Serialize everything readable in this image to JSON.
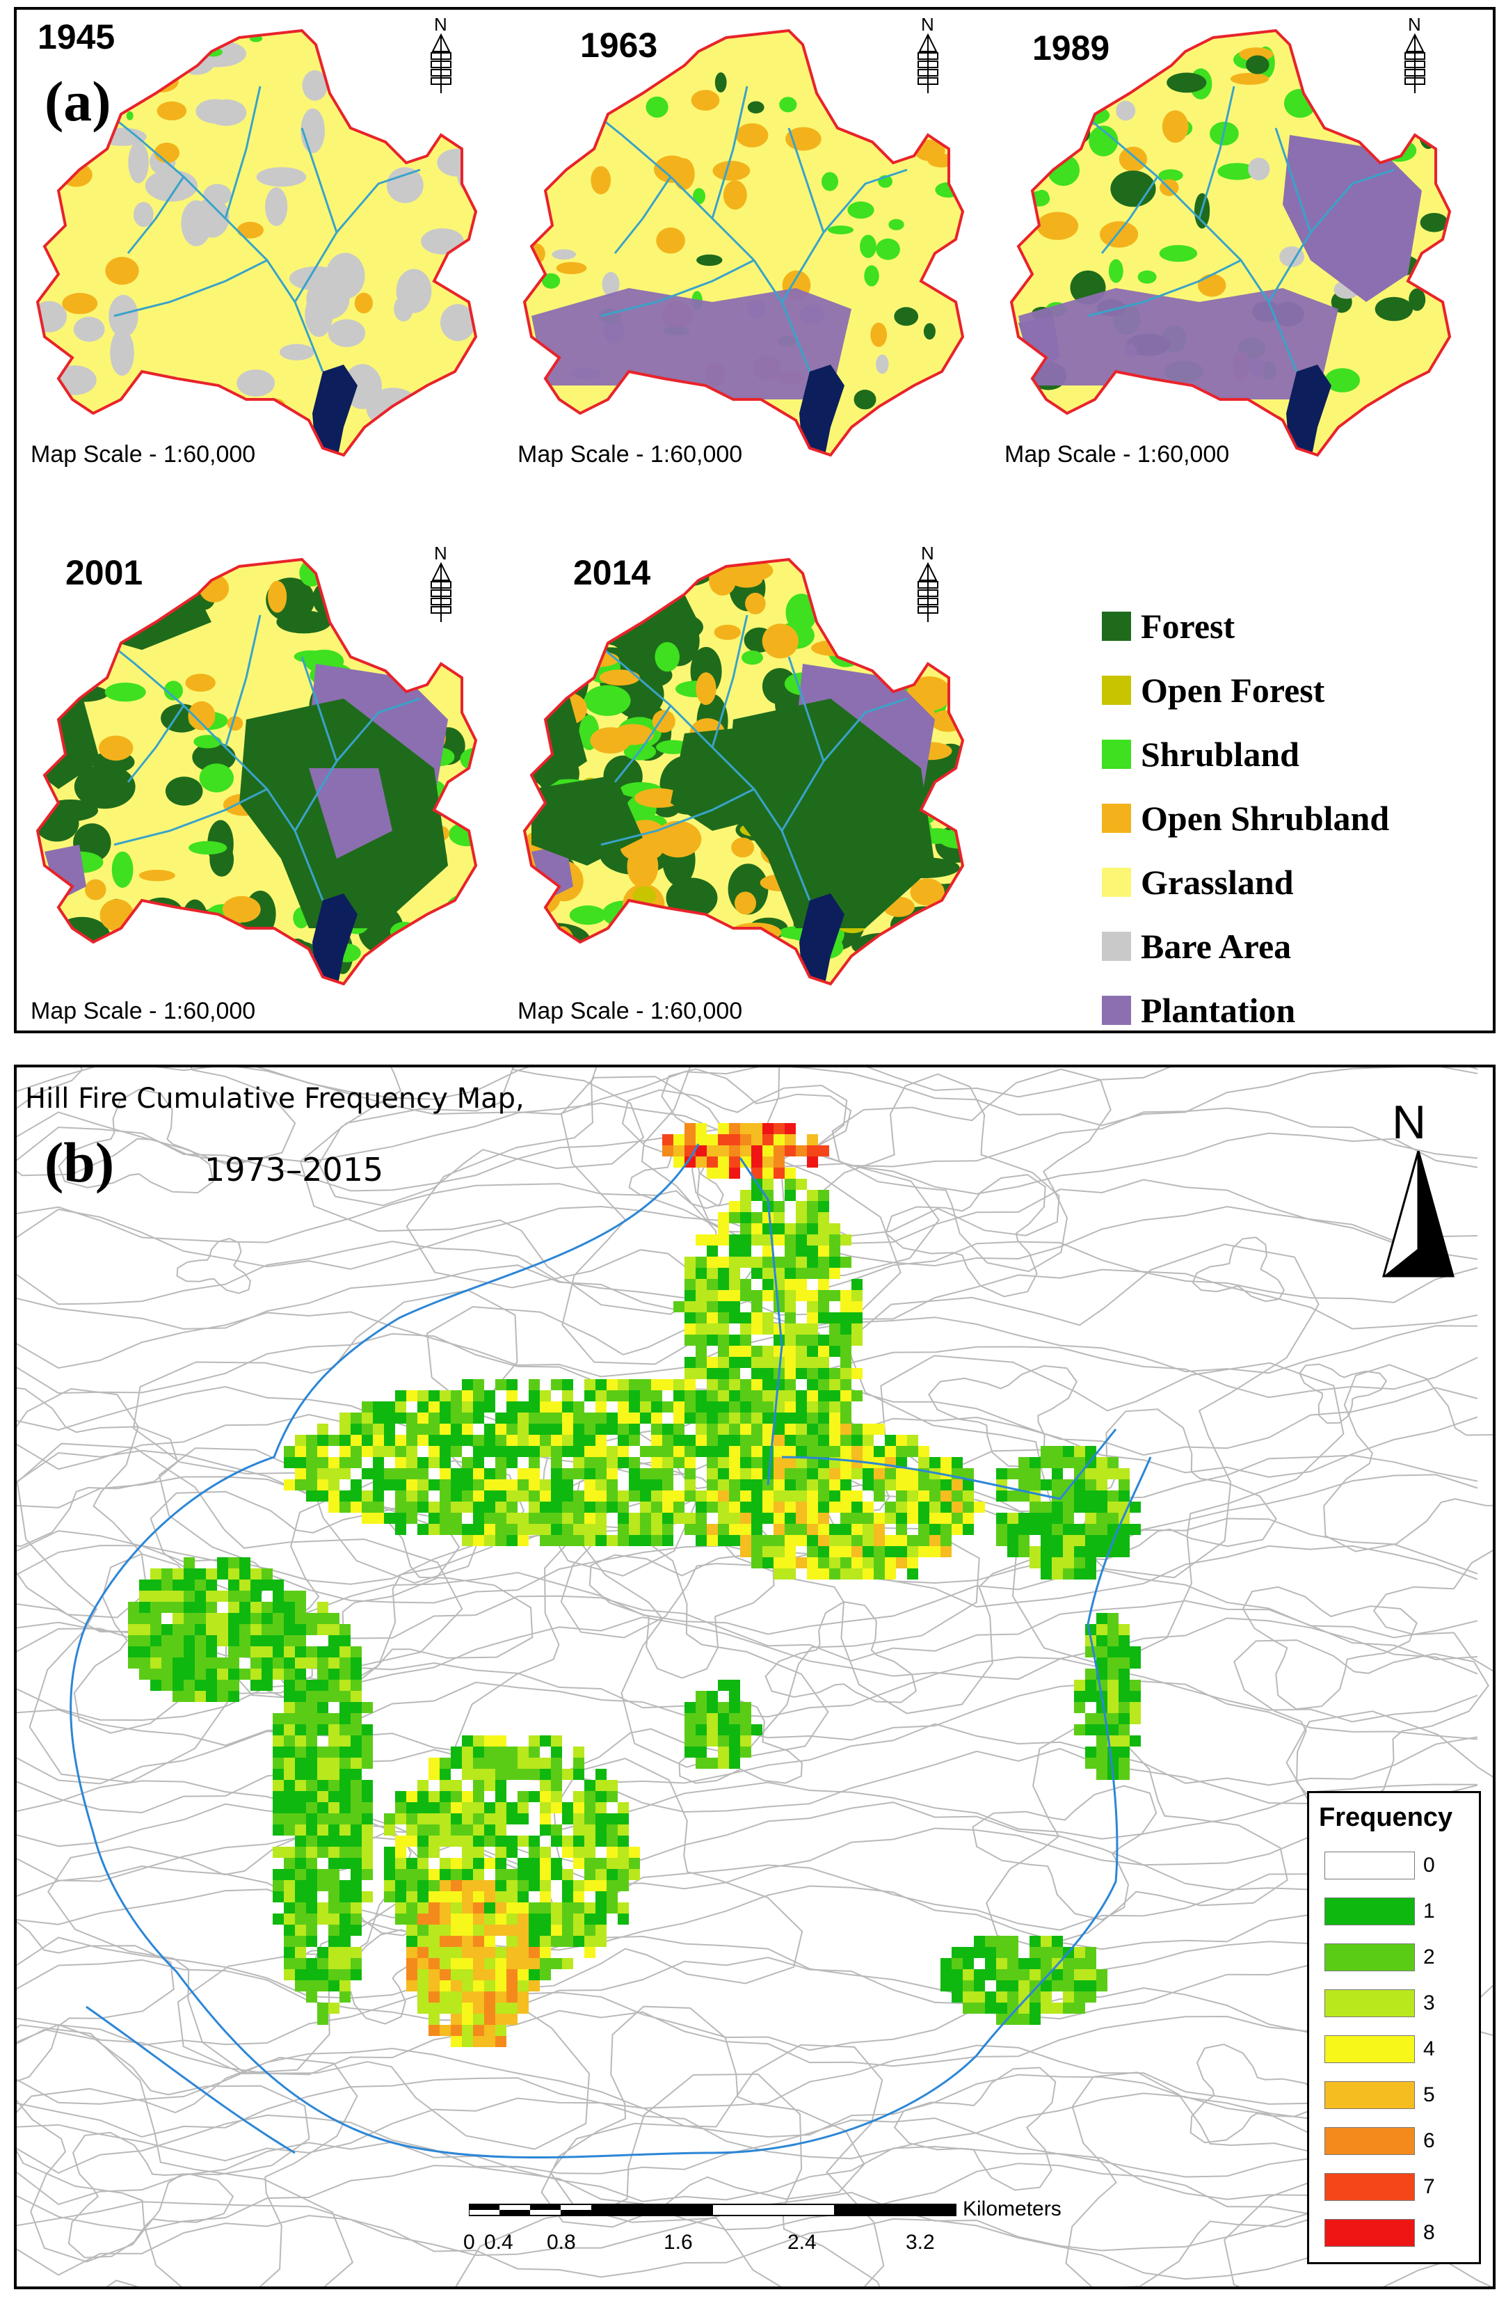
{
  "panel_a": {
    "label": "(a)",
    "maps": [
      {
        "year": "1945",
        "scale": "Map Scale - 1:60,000",
        "stage": 0
      },
      {
        "year": "1963",
        "scale": "Map Scale - 1:60,000",
        "stage": 1
      },
      {
        "year": "1989",
        "scale": "Map Scale - 1:60,000",
        "stage": 2
      },
      {
        "year": "2001",
        "scale": "Map Scale - 1:60,000",
        "stage": 3
      },
      {
        "year": "2014",
        "scale": "Map Scale - 1:60,000",
        "stage": 4
      }
    ],
    "north_symbol": "N",
    "legend": [
      {
        "label": "Forest",
        "color": "#1f6b1c"
      },
      {
        "label": "Open Forest",
        "color": "#c8c400"
      },
      {
        "label": "Shrubland",
        "color": "#3ee01f"
      },
      {
        "label": "Open Shrubland",
        "color": "#f3b21b"
      },
      {
        "label": "Grassland",
        "color": "#fbf775"
      },
      {
        "label": "Bare Area",
        "color": "#c9c9c9"
      },
      {
        "label": "Plantation",
        "color": "#8c6fb0"
      }
    ],
    "colors": {
      "boundary": "#e8232b",
      "river": "#3aa3c9",
      "reservoir": "#0d1e5c"
    }
  },
  "panel_b": {
    "label": "(b)",
    "title": "Hill Fire Cumulative Frequency Map,",
    "period": "1973–2015",
    "north_symbol": "N",
    "legend_title": "Frequency",
    "legend": [
      {
        "label": "0",
        "color": "#ffffff"
      },
      {
        "label": "1",
        "color": "#0fb80f"
      },
      {
        "label": "2",
        "color": "#5bcc16"
      },
      {
        "label": "3",
        "color": "#b9e81d"
      },
      {
        "label": "4",
        "color": "#f7f71a"
      },
      {
        "label": "5",
        "color": "#f5bd1f"
      },
      {
        "label": "6",
        "color": "#f58a1c"
      },
      {
        "label": "7",
        "color": "#f5461a"
      },
      {
        "label": "8",
        "color": "#f01515"
      }
    ],
    "scalebar": {
      "unit": "Kilometers",
      "ticks": [
        "0",
        "0.4",
        "0.8",
        "1.6",
        "2.4",
        "3.2"
      ]
    },
    "colors": {
      "contour": "#b9b9b9",
      "river": "#2c86d6"
    }
  }
}
